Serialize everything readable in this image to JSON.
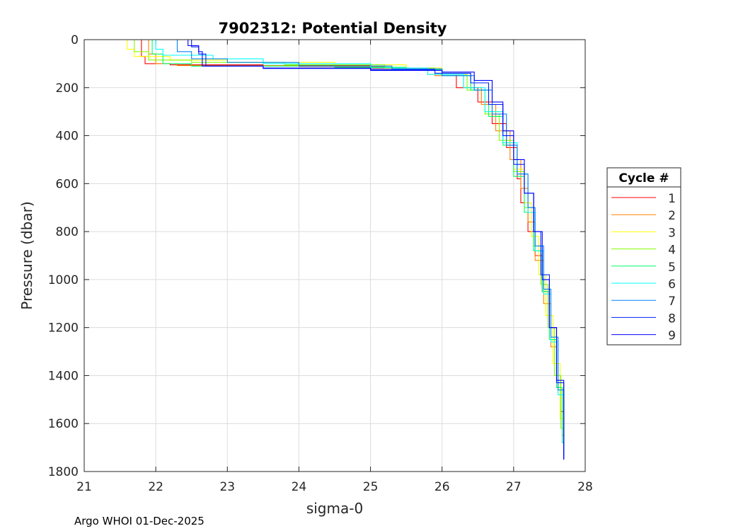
{
  "chart_data": {
    "type": "line",
    "title": "7902312: Potential Density",
    "xlabel": "sigma-0",
    "ylabel": "Pressure (dbar)",
    "xlim": [
      21,
      28
    ],
    "ylim": [
      0,
      1800
    ],
    "y_reversed": true,
    "grid": true,
    "xticks": [
      "21",
      "22",
      "23",
      "24",
      "25",
      "26",
      "27",
      "28"
    ],
    "yticks": [
      "0",
      "200",
      "400",
      "600",
      "800",
      "1000",
      "1200",
      "1400",
      "1600",
      "1800"
    ],
    "legend_title": "Cycle #",
    "legend_position": "right",
    "footer": "Argo WHOI 01-Dec-2025",
    "series": [
      {
        "name": "1",
        "color": "#ff0000",
        "points": [
          [
            21.8,
            0
          ],
          [
            21.8,
            70
          ],
          [
            21.85,
            100
          ],
          [
            22.2,
            105
          ],
          [
            23.5,
            108
          ],
          [
            25,
            120
          ],
          [
            25.8,
            145
          ],
          [
            26.2,
            200
          ],
          [
            26.5,
            260
          ],
          [
            26.7,
            350
          ],
          [
            26.9,
            450
          ],
          [
            27.05,
            580
          ],
          [
            27.1,
            680
          ],
          [
            27.2,
            800
          ],
          [
            27.3,
            900
          ],
          [
            27.4,
            1050
          ],
          [
            27.5,
            1200
          ],
          [
            27.6,
            1400
          ],
          [
            27.65,
            1550
          ],
          [
            27.7,
            1720
          ]
        ]
      },
      {
        "name": "2",
        "color": "#ff8000",
        "points": [
          [
            21.85,
            0
          ],
          [
            21.9,
            60
          ],
          [
            22.0,
            100
          ],
          [
            22.3,
            108
          ],
          [
            24,
            112
          ],
          [
            25.2,
            120
          ],
          [
            25.9,
            150
          ],
          [
            26.3,
            200
          ],
          [
            26.55,
            270
          ],
          [
            26.75,
            380
          ],
          [
            26.95,
            500
          ],
          [
            27.1,
            620
          ],
          [
            27.2,
            760
          ],
          [
            27.3,
            920
          ],
          [
            27.42,
            1100
          ],
          [
            27.52,
            1280
          ],
          [
            27.6,
            1450
          ],
          [
            27.68,
            1650
          ],
          [
            27.7,
            1740
          ]
        ]
      },
      {
        "name": "3",
        "color": "#ffff00",
        "points": [
          [
            21.5,
            0
          ],
          [
            21.6,
            40
          ],
          [
            21.7,
            70
          ],
          [
            22.2,
            85
          ],
          [
            23,
            95
          ],
          [
            24.5,
            105
          ],
          [
            25.5,
            118
          ],
          [
            26,
            140
          ],
          [
            26.4,
            210
          ],
          [
            26.6,
            300
          ],
          [
            26.85,
            430
          ],
          [
            27,
            540
          ],
          [
            27.15,
            680
          ],
          [
            27.25,
            820
          ],
          [
            27.35,
            980
          ],
          [
            27.45,
            1150
          ],
          [
            27.55,
            1350
          ],
          [
            27.65,
            1580
          ],
          [
            27.7,
            1740
          ]
        ]
      },
      {
        "name": "4",
        "color": "#80ff00",
        "points": [
          [
            21.65,
            0
          ],
          [
            21.7,
            50
          ],
          [
            21.9,
            85
          ],
          [
            22.5,
            95
          ],
          [
            23.8,
            105
          ],
          [
            25.2,
            118
          ],
          [
            25.9,
            145
          ],
          [
            26.35,
            210
          ],
          [
            26.6,
            310
          ],
          [
            26.8,
            420
          ],
          [
            27,
            550
          ],
          [
            27.15,
            700
          ],
          [
            27.28,
            860
          ],
          [
            27.38,
            1020
          ],
          [
            27.48,
            1200
          ],
          [
            27.57,
            1400
          ],
          [
            27.66,
            1620
          ],
          [
            27.7,
            1740
          ]
        ]
      },
      {
        "name": "5",
        "color": "#00ff60",
        "points": [
          [
            21.95,
            0
          ],
          [
            21.95,
            60
          ],
          [
            22.1,
            100
          ],
          [
            22.5,
            110
          ],
          [
            24.5,
            115
          ],
          [
            25.5,
            125
          ],
          [
            26,
            150
          ],
          [
            26.4,
            210
          ],
          [
            26.65,
            320
          ],
          [
            26.85,
            440
          ],
          [
            27,
            570
          ],
          [
            27.15,
            720
          ],
          [
            27.28,
            880
          ],
          [
            27.4,
            1050
          ],
          [
            27.5,
            1250
          ],
          [
            27.6,
            1450
          ],
          [
            27.68,
            1680
          ],
          [
            27.7,
            1740
          ]
        ]
      },
      {
        "name": "6",
        "color": "#00ffff",
        "points": [
          [
            21.95,
            0
          ],
          [
            22.0,
            40
          ],
          [
            22.1,
            65
          ],
          [
            22.8,
            80
          ],
          [
            23.5,
            100
          ],
          [
            25,
            118
          ],
          [
            25.8,
            145
          ],
          [
            26.3,
            200
          ],
          [
            26.6,
            300
          ],
          [
            26.85,
            430
          ],
          [
            27.05,
            560
          ],
          [
            27.2,
            720
          ],
          [
            27.3,
            880
          ],
          [
            27.42,
            1060
          ],
          [
            27.52,
            1260
          ],
          [
            27.62,
            1480
          ],
          [
            27.7,
            1740
          ]
        ]
      },
      {
        "name": "7",
        "color": "#0080ff",
        "points": [
          [
            22.3,
            0
          ],
          [
            22.3,
            50
          ],
          [
            22.5,
            80
          ],
          [
            23,
            95
          ],
          [
            24,
            110
          ],
          [
            25.3,
            122
          ],
          [
            26,
            150
          ],
          [
            26.45,
            210
          ],
          [
            26.7,
            310
          ],
          [
            26.9,
            440
          ],
          [
            27.05,
            560
          ],
          [
            27.2,
            700
          ],
          [
            27.3,
            860
          ],
          [
            27.42,
            1040
          ],
          [
            27.52,
            1240
          ],
          [
            27.62,
            1460
          ],
          [
            27.7,
            1740
          ]
        ]
      },
      {
        "name": "8",
        "color": "#0020ff",
        "points": [
          [
            22.45,
            0
          ],
          [
            22.5,
            30
          ],
          [
            22.6,
            60
          ],
          [
            22.7,
            110
          ],
          [
            23.5,
            118
          ],
          [
            25,
            125
          ],
          [
            25.9,
            140
          ],
          [
            26.4,
            180
          ],
          [
            26.65,
            270
          ],
          [
            26.85,
            400
          ],
          [
            27.0,
            520
          ],
          [
            27.15,
            640
          ],
          [
            27.28,
            800
          ],
          [
            27.38,
            980
          ],
          [
            27.5,
            1200
          ],
          [
            27.6,
            1430
          ],
          [
            27.7,
            1750
          ]
        ]
      },
      {
        "name": "9",
        "color": "#0000ff",
        "points": [
          [
            22.4,
            0
          ],
          [
            22.45,
            25
          ],
          [
            22.6,
            50
          ],
          [
            22.65,
            110
          ],
          [
            23.5,
            120
          ],
          [
            25,
            128
          ],
          [
            26,
            135
          ],
          [
            26.45,
            170
          ],
          [
            26.7,
            260
          ],
          [
            26.85,
            380
          ],
          [
            27.0,
            500
          ],
          [
            27.15,
            640
          ],
          [
            27.28,
            800
          ],
          [
            27.4,
            1000
          ],
          [
            27.5,
            1200
          ],
          [
            27.6,
            1420
          ],
          [
            27.7,
            1750
          ]
        ]
      }
    ]
  }
}
